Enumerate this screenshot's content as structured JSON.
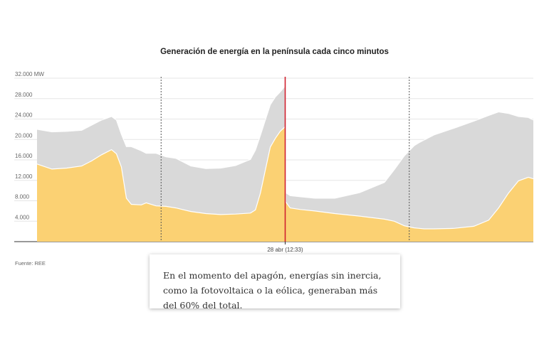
{
  "source_label": "Fuente: REE",
  "annotation_text": "En el momento del apagón, energías sin inercia, como la fotovoltaica o la eólica, generaban más del 60% del total.",
  "colors": {
    "solar": "#fbd173",
    "other": "#d9d9d9",
    "stroke": "#ffffff",
    "blackout_line": "#d0202e",
    "grid": "#e5e5e5",
    "axis": "#333333",
    "dashed": "#555555"
  },
  "chart_data": {
    "type": "area",
    "title": "Generación de energía en la península cada cinco minutos",
    "xlabel": "",
    "ylabel": "",
    "y_unit": "MW",
    "ylim": [
      0,
      32000
    ],
    "y_ticks": [
      4000,
      8000,
      12000,
      16000,
      20000,
      24000,
      28000,
      32000
    ],
    "y_tick_labels": [
      "4.000",
      "8.000",
      "12.000",
      "16.000",
      "20.000",
      "24.000",
      "28.000",
      "32.000 MW"
    ],
    "x_range": [
      0,
      100
    ],
    "x": [
      0,
      3,
      6,
      9,
      11,
      13,
      15,
      16,
      17,
      18,
      19,
      21,
      22,
      24,
      26,
      28,
      31,
      34,
      37,
      40,
      43,
      44,
      45,
      46,
      47,
      48,
      49,
      50,
      50.1,
      51,
      53,
      56,
      60,
      65,
      70,
      72,
      74,
      76,
      77,
      78,
      80,
      84,
      88,
      91,
      93,
      95,
      97,
      99,
      100
    ],
    "series": [
      {
        "name": "",
        "values": [
          15200,
          14200,
          14400,
          14800,
          15800,
          17000,
          18000,
          17200,
          14600,
          8500,
          7300,
          7200,
          7600,
          7000,
          6900,
          6600,
          5900,
          5500,
          5300,
          5400,
          5600,
          6200,
          9500,
          14000,
          18500,
          20200,
          21600,
          22500,
          7800,
          6600,
          6300,
          6000,
          5500,
          5000,
          4400,
          4000,
          3100,
          2700,
          2600,
          2500,
          2500,
          2600,
          3000,
          4200,
          6600,
          9500,
          11900,
          12600,
          12300
        ]
      },
      {
        "name": "",
        "values": [
          22000,
          21500,
          21600,
          21800,
          22800,
          23800,
          24500,
          23800,
          21000,
          18600,
          18600,
          17800,
          17300,
          17300,
          16600,
          16300,
          14800,
          14300,
          14400,
          14900,
          16100,
          17900,
          20800,
          23800,
          26800,
          28300,
          29300,
          30500,
          9600,
          9000,
          8800,
          8500,
          8500,
          9600,
          11600,
          14100,
          16800,
          18800,
          19400,
          19900,
          20900,
          22200,
          23600,
          24700,
          25400,
          25100,
          24500,
          24300,
          23800
        ]
      }
    ],
    "event_lines": [
      {
        "x": 25,
        "style": "dashed"
      },
      {
        "x": 50,
        "style": "solid",
        "label": "28 abr (12:33)"
      },
      {
        "x": 75,
        "style": "dashed"
      }
    ]
  }
}
